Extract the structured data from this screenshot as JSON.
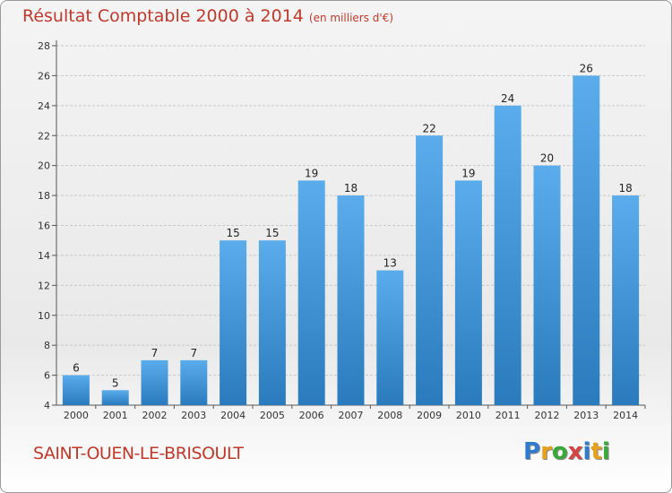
{
  "title": "Résultat Comptable 2000 à 2014",
  "subtitle": "(en milliers d'€)",
  "commune": "SAINT-OUEN-LE-BRISOULT",
  "logo": {
    "letters": [
      "P",
      "r",
      "o",
      "x",
      "i",
      "t",
      "i"
    ],
    "colors": [
      "#2f7bd0",
      "#e8a11c",
      "#3aa83a",
      "#d64545",
      "#2f7bd0",
      "#e8a11c",
      "#3aa83a"
    ]
  },
  "colors": {
    "bar_top": "#5aaceb",
    "bar_bottom": "#2a7bbd",
    "grid": "#c8c8c8",
    "title": "#c0392b"
  },
  "chart_data": {
    "type": "bar",
    "title": "Résultat Comptable 2000 à 2014",
    "subtitle": "(en milliers d'€)",
    "xlabel": "",
    "ylabel": "",
    "categories": [
      "2000",
      "2001",
      "2002",
      "2003",
      "2004",
      "2005",
      "2006",
      "2007",
      "2008",
      "2009",
      "2010",
      "2011",
      "2012",
      "2013",
      "2014"
    ],
    "values": [
      6,
      5,
      7,
      7,
      15,
      15,
      19,
      18,
      13,
      22,
      19,
      24,
      20,
      26,
      18
    ],
    "ylim": [
      4,
      28
    ],
    "yticks": [
      4,
      6,
      8,
      10,
      12,
      14,
      16,
      18,
      20,
      22,
      24,
      26,
      28
    ],
    "grid": true
  }
}
